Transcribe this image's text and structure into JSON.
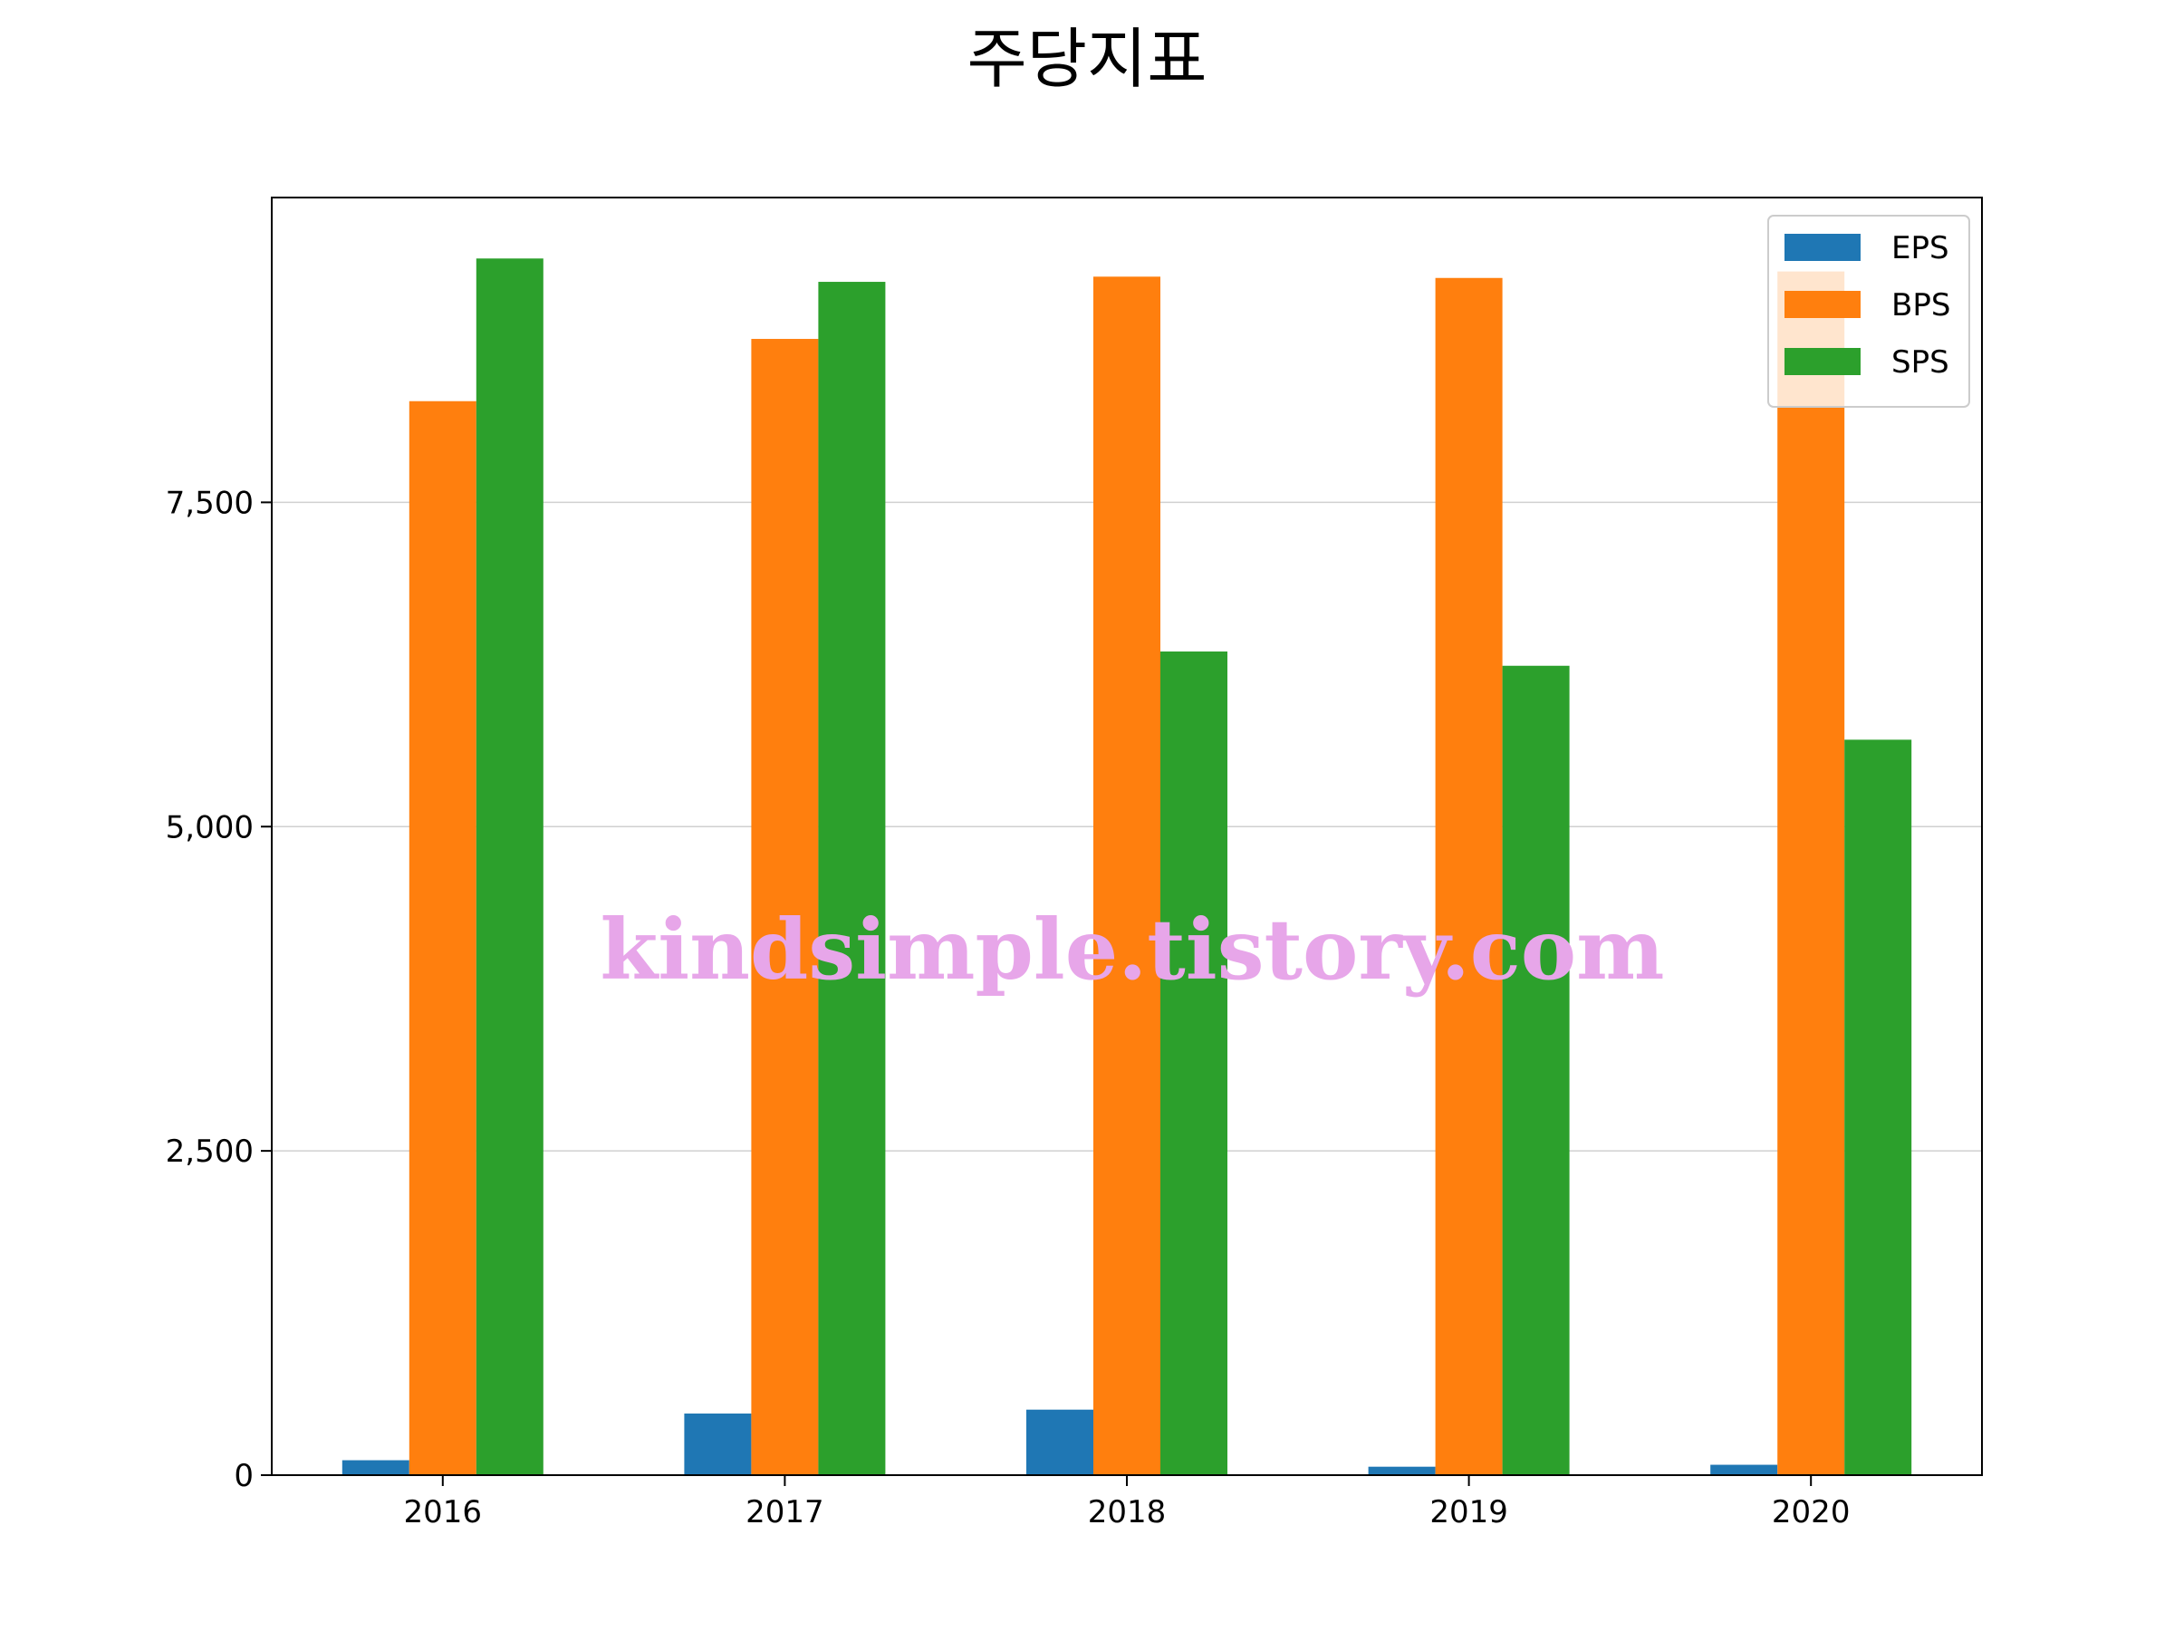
{
  "chart_data": {
    "type": "bar",
    "title": "주당지표",
    "xlabel": "",
    "ylabel": "",
    "categories": [
      "2016",
      "2017",
      "2018",
      "2019",
      "2020"
    ],
    "series": [
      {
        "name": "EPS",
        "color": "#1f77b4",
        "values": [
          115,
          475,
          505,
          65,
          80
        ]
      },
      {
        "name": "BPS",
        "color": "#ff7f0e",
        "values": [
          8280,
          8760,
          9240,
          9230,
          9280
        ]
      },
      {
        "name": "SPS",
        "color": "#2ca02c",
        "values": [
          9380,
          9200,
          6350,
          6240,
          5670
        ]
      }
    ],
    "ylim": [
      0,
      9850
    ],
    "yticks": [
      0,
      2500,
      5000,
      7500
    ],
    "ytick_labels": [
      "0",
      "2,500",
      "5,000",
      "7,500"
    ],
    "grid": "horizontal",
    "legend_position": "top-right"
  },
  "watermark": "kindsimple.tistory.com"
}
